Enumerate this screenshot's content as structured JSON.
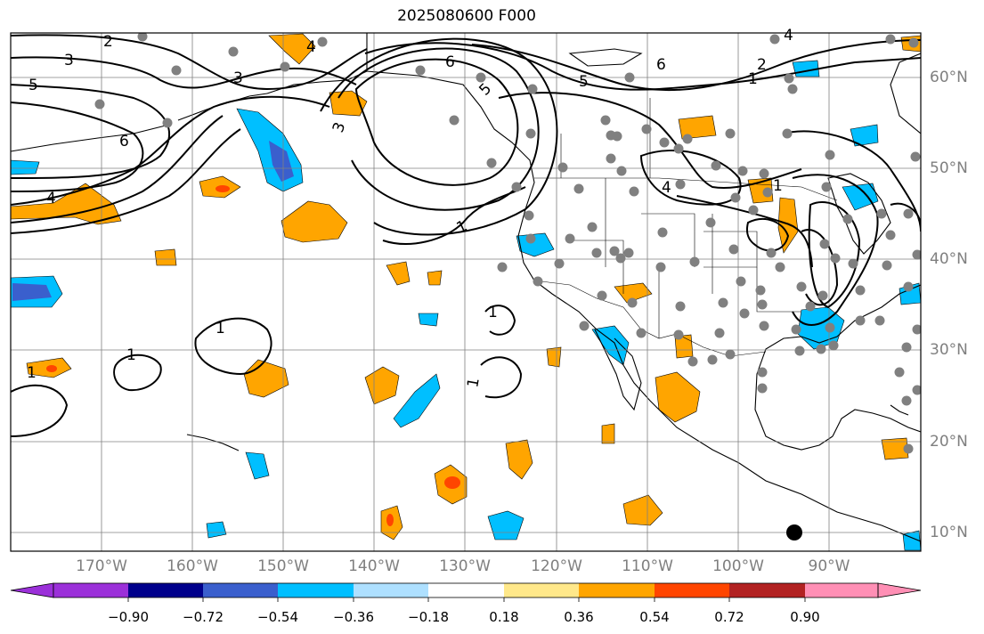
{
  "title": "2025080600 F000",
  "latitude_labels": [
    "60°N",
    "50°N",
    "40°N",
    "30°N",
    "20°N",
    "10°N"
  ],
  "longitude_labels": [
    "170°W",
    "160°W",
    "150°W",
    "140°W",
    "130°W",
    "120°W",
    "110°W",
    "100°W",
    "90°W"
  ],
  "colorbar": {
    "tick_labels": [
      "−0.90",
      "−0.72",
      "−0.54",
      "−0.36",
      "−0.18",
      "0.18",
      "0.36",
      "0.54",
      "0.72",
      "0.90"
    ],
    "colors": [
      "#9b30d9",
      "#00008b",
      "#3a5fcd",
      "#00bfff",
      "#aee0ff",
      "#ffffff",
      "#ffe88a",
      "#ffa500",
      "#ff4500",
      "#b22222",
      "#ff8fb5"
    ]
  },
  "contour_labels": [
    "2",
    "3",
    "4",
    "5",
    "6",
    "1"
  ],
  "colors": {
    "land_outline": "#000000",
    "grid": "#808080",
    "station_dot": "#808080",
    "marker": "#000000"
  }
}
